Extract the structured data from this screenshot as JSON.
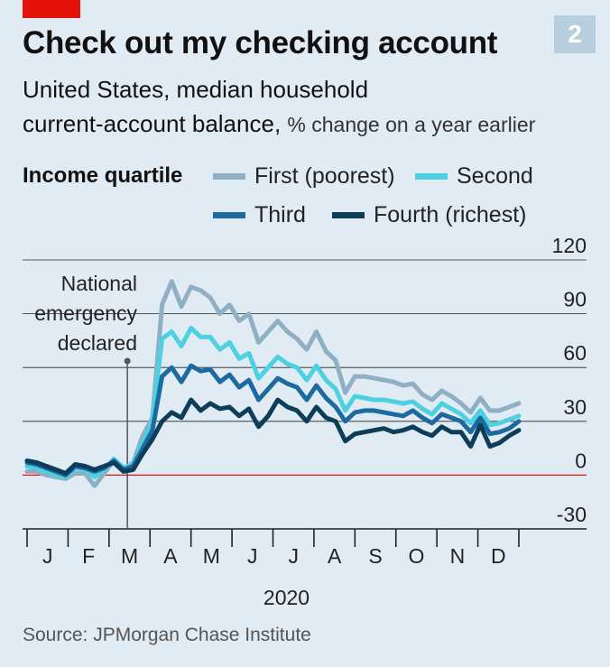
{
  "header": {
    "badge": "2",
    "title": "Check out my checking account",
    "subtitle_main_line1": "United States, median household",
    "subtitle_main_line2": "current-account balance,",
    "subtitle_light": "% change on a year earlier"
  },
  "legend": {
    "title": "Income quartile",
    "items": [
      {
        "label": "First (poorest)",
        "color": "#8fb0c4"
      },
      {
        "label": "Second",
        "color": "#4dd0e1"
      },
      {
        "label": "Third",
        "color": "#1c6aa0"
      },
      {
        "label": "Fourth (richest)",
        "color": "#0d3e59"
      }
    ]
  },
  "annotation": {
    "lines": [
      "National",
      "emergency",
      "declared"
    ],
    "week": 10.4
  },
  "source": "Source: JPMorgan Chase Institute",
  "colors": {
    "background": "#e1ebf3",
    "grid": "#222222",
    "zero_line": "#e3120b",
    "accent": "#e3120b"
  },
  "chart_data": {
    "type": "line",
    "x_unit": "week of 2020",
    "x": [
      0,
      1,
      2,
      3,
      4,
      5,
      6,
      7,
      8,
      9,
      10,
      11,
      12,
      13,
      14,
      15,
      16,
      17,
      18,
      19,
      20,
      21,
      22,
      23,
      24,
      25,
      26,
      27,
      28,
      29,
      30,
      31,
      32,
      33,
      34,
      35,
      36,
      37,
      38,
      39,
      40,
      41,
      42,
      43,
      44,
      45,
      46,
      47,
      48,
      49,
      50,
      51
    ],
    "xlim": [
      0,
      51
    ],
    "ylim": [
      -30,
      120
    ],
    "yticks": [
      120,
      90,
      60,
      30,
      0,
      -30
    ],
    "month_labels": [
      "J",
      "F",
      "M",
      "A",
      "M",
      "J",
      "J",
      "A",
      "S",
      "O",
      "N",
      "D"
    ],
    "year_label": "2020",
    "series": [
      {
        "name": "First (poorest)",
        "color": "#8fb0c4",
        "values": [
          2,
          2,
          0,
          -1,
          -2,
          1,
          1,
          -6,
          1,
          8,
          3,
          7,
          22,
          32,
          95,
          108,
          94,
          105,
          103,
          99,
          90,
          95,
          86,
          90,
          74,
          80,
          86,
          80,
          76,
          70,
          80,
          69,
          64,
          46,
          55,
          55,
          54,
          53,
          52,
          50,
          51,
          45,
          42,
          47,
          44,
          40,
          35,
          43,
          36,
          36,
          38,
          40
        ]
      },
      {
        "name": "Second",
        "color": "#4dd0e1",
        "values": [
          5,
          4,
          2,
          0,
          -1,
          4,
          3,
          -1,
          3,
          9,
          4,
          6,
          18,
          30,
          76,
          80,
          72,
          82,
          77,
          77,
          70,
          74,
          65,
          68,
          54,
          60,
          66,
          62,
          60,
          53,
          61,
          53,
          48,
          36,
          44,
          43,
          42,
          42,
          41,
          40,
          41,
          37,
          34,
          40,
          37,
          34,
          29,
          36,
          28,
          29,
          31,
          33
        ]
      },
      {
        "name": "Third",
        "color": "#1c6aa0",
        "values": [
          7,
          6,
          4,
          2,
          0,
          5,
          4,
          2,
          4,
          8,
          3,
          5,
          15,
          25,
          55,
          60,
          52,
          61,
          58,
          59,
          52,
          56,
          49,
          53,
          42,
          48,
          54,
          51,
          49,
          42,
          50,
          43,
          38,
          30,
          35,
          36,
          36,
          35,
          34,
          33,
          36,
          32,
          29,
          34,
          32,
          30,
          24,
          32,
          23,
          24,
          26,
          30
        ]
      },
      {
        "name": "Fourth (richest)",
        "color": "#0d3e59",
        "values": [
          8,
          7,
          5,
          3,
          1,
          6,
          5,
          3,
          5,
          7,
          2,
          3,
          12,
          20,
          30,
          35,
          32,
          42,
          36,
          40,
          37,
          38,
          33,
          37,
          27,
          33,
          42,
          38,
          36,
          30,
          38,
          32,
          30,
          19,
          23,
          24,
          25,
          26,
          24,
          25,
          27,
          24,
          22,
          27,
          24,
          24,
          16,
          28,
          16,
          18,
          22,
          25
        ]
      }
    ]
  }
}
